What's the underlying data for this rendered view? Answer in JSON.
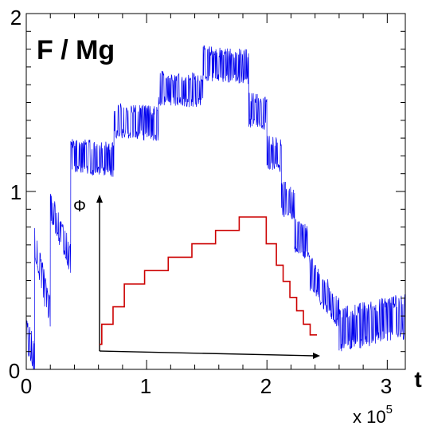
{
  "chart_data": [
    {
      "type": "line",
      "title": "F / Mg",
      "xlabel": "t",
      "x_multiplier_label": "x 10",
      "x_multiplier_exponent": "5",
      "xlim": [
        0,
        3.15
      ],
      "ylim": [
        0,
        2
      ],
      "x_ticks": [
        0,
        1,
        2,
        3
      ],
      "x_tick_labels": [
        "0",
        "1",
        "2",
        "3"
      ],
      "y_ticks": [
        0,
        1,
        2
      ],
      "y_tick_labels": [
        "0",
        "1",
        "2"
      ],
      "grid": false,
      "series_color": "#0000ee",
      "series": [
        {
          "segments": [
            {
              "x0": 0.0,
              "x1": 0.07,
              "y0": 0.2,
              "y1": 0.07,
              "amp": 0.1
            },
            {
              "x0": 0.07,
              "x1": 0.2,
              "y0": 0.72,
              "y1": 0.3,
              "amp": 0.1
            },
            {
              "x0": 0.2,
              "x1": 0.37,
              "y0": 0.92,
              "y1": 0.62,
              "amp": 0.09
            },
            {
              "x0": 0.37,
              "x1": 0.73,
              "y0": 1.2,
              "y1": 1.18,
              "amp": 0.1
            },
            {
              "x0": 0.73,
              "x1": 1.1,
              "y0": 1.4,
              "y1": 1.38,
              "amp": 0.1
            },
            {
              "x0": 1.1,
              "x1": 1.47,
              "y0": 1.58,
              "y1": 1.57,
              "amp": 0.1
            },
            {
              "x0": 1.47,
              "x1": 1.85,
              "y0": 1.72,
              "y1": 1.7,
              "amp": 0.1
            },
            {
              "x0": 1.85,
              "x1": 2.0,
              "y0": 1.46,
              "y1": 1.44,
              "amp": 0.1
            },
            {
              "x0": 2.0,
              "x1": 2.12,
              "y0": 1.22,
              "y1": 1.2,
              "amp": 0.1
            },
            {
              "x0": 2.12,
              "x1": 2.23,
              "y0": 0.96,
              "y1": 0.94,
              "amp": 0.1
            },
            {
              "x0": 2.23,
              "x1": 2.35,
              "y0": 0.76,
              "y1": 0.7,
              "amp": 0.1
            },
            {
              "x0": 2.35,
              "x1": 2.6,
              "y0": 0.55,
              "y1": 0.32,
              "amp": 0.1
            },
            {
              "x0": 2.6,
              "x1": 3.15,
              "y0": 0.22,
              "y1": 0.3,
              "amp": 0.13
            }
          ]
        }
      ]
    },
    {
      "type": "line",
      "inset": true,
      "ylabel": "Φ",
      "series_color": "#cc0000",
      "series": [
        {
          "steps": [
            0.05,
            0.2,
            0.33,
            0.5,
            0.6,
            0.7,
            0.8,
            0.9,
            1.0,
            0.8,
            0.64,
            0.52,
            0.4,
            0.3,
            0.2,
            0.12
          ],
          "durations": [
            0.2,
            1.0,
            1.0,
            1.8,
            2.1,
            2.1,
            2.1,
            2.1,
            2.4,
            0.9,
            0.6,
            0.6,
            0.6,
            0.6,
            0.6,
            0.6
          ]
        }
      ]
    }
  ]
}
